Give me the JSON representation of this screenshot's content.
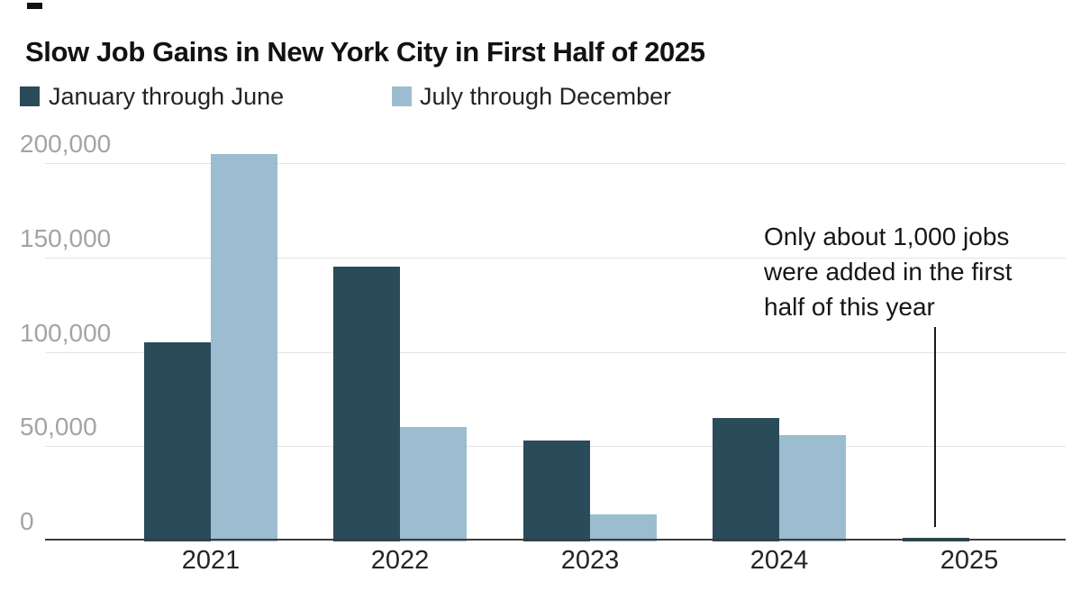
{
  "accent_colors": {
    "first_half_bar": "#2a4b59",
    "second_half_bar": "#9bbdcf",
    "gridline": "#e4e4e4",
    "axis_line": "#3c3c3c",
    "ytick_text": "#a4a4a4",
    "text": "#121212"
  },
  "chart_data": {
    "type": "bar",
    "title": "Slow Job Gains in New York City in First Half of 2025",
    "categories": [
      "2021",
      "2022",
      "2023",
      "2024",
      "2025"
    ],
    "series": [
      {
        "name": "January through June",
        "color": "#2a4b59",
        "values": [
          105000,
          145000,
          53000,
          65000,
          1000
        ]
      },
      {
        "name": "July through December",
        "color": "#9bbdcf",
        "values": [
          205000,
          60000,
          14000,
          56000,
          null
        ]
      }
    ],
    "xlabel": "",
    "ylabel": "",
    "ylim": [
      0,
      200000
    ],
    "yticks": {
      "values": [
        0,
        50000,
        100000,
        150000,
        200000
      ],
      "labels": [
        "0",
        "50,000",
        "100,000",
        "150,000",
        "200,000"
      ]
    },
    "grid": true,
    "legend_position": "top-left",
    "annotation": {
      "text": "Only about 1,000 jobs\nwere added in the first\nhalf of this year",
      "points_to_category": "2025"
    }
  }
}
